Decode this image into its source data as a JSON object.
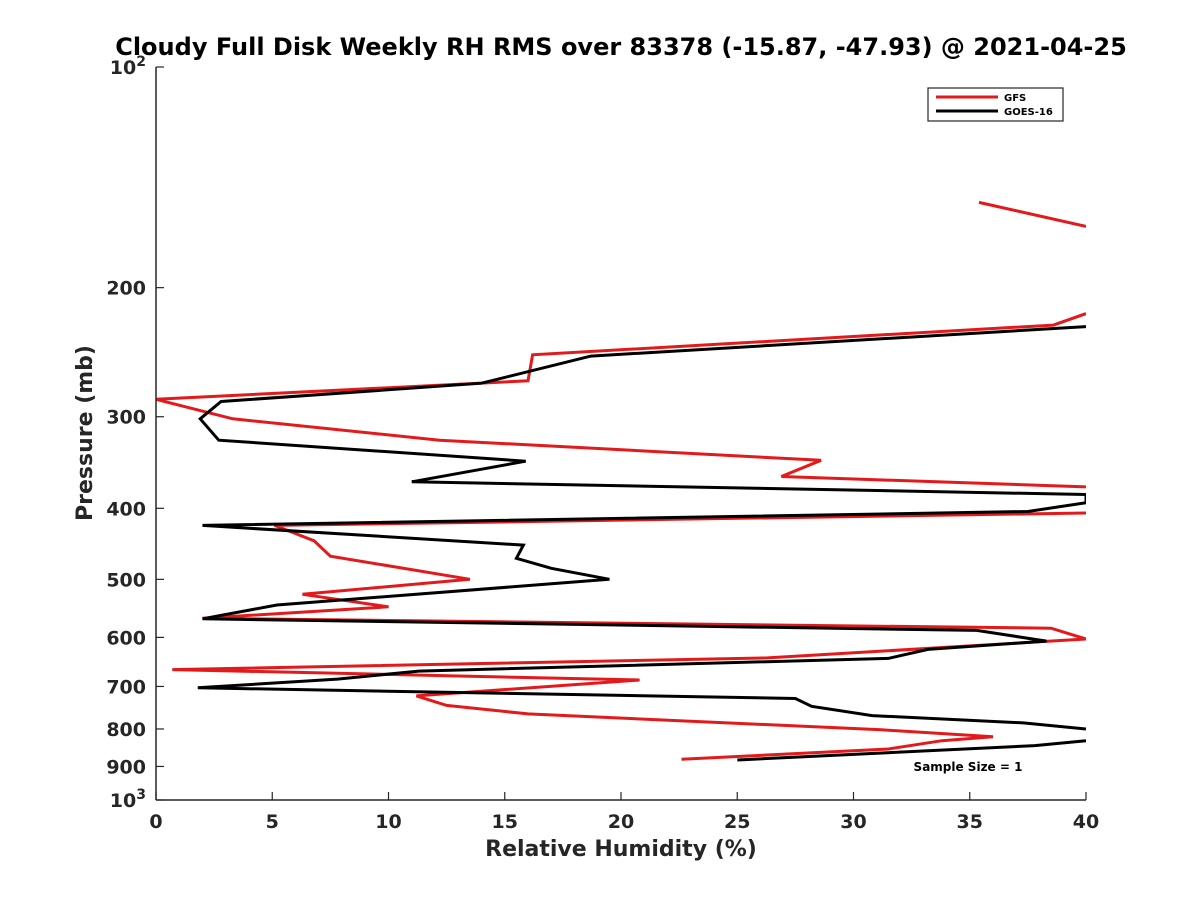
{
  "chart_data": {
    "type": "line",
    "title": "Cloudy Full Disk Weekly RH RMS over 83378 (-15.87, -47.93) @ 2021-04-25",
    "xlabel": "Relative Humidity (%)",
    "ylabel": "Pressure (mb)",
    "xlim": [
      0,
      40
    ],
    "ylim": [
      100,
      1000
    ],
    "y_scale": "log",
    "y_reversed": true,
    "grid": false,
    "legend_position": "top-right",
    "x_ticks": [
      0,
      5,
      10,
      15,
      20,
      25,
      30,
      35,
      40
    ],
    "y_ticks": [
      {
        "value": 100,
        "base": "10",
        "exp": "2"
      },
      {
        "value": 200,
        "label": "200"
      },
      {
        "value": 300,
        "label": "300"
      },
      {
        "value": 400,
        "label": "400"
      },
      {
        "value": 500,
        "label": "500"
      },
      {
        "value": 600,
        "label": "600"
      },
      {
        "value": 700,
        "label": "700"
      },
      {
        "value": 800,
        "label": "800"
      },
      {
        "value": 900,
        "label": "900"
      },
      {
        "value": 1000,
        "base": "10",
        "exp": "3"
      }
    ],
    "annotation": "Sample Size = 1",
    "series": [
      {
        "name": "GFS",
        "color": "#e31a1c",
        "segments": [
          [
            [
              35.4,
              153
            ],
            [
              40,
              165
            ]
          ],
          [
            [
              40,
              217
            ],
            [
              38.6,
              225
            ],
            [
              16.2,
              247
            ],
            [
              16.0,
              268
            ],
            [
              0,
              284
            ],
            [
              3.3,
              302
            ],
            [
              12.2,
              323
            ],
            [
              28.6,
              344
            ],
            [
              26.9,
              362
            ],
            [
              40,
              374
            ]
          ],
          [
            [
              40,
              406
            ],
            [
              5.1,
              422
            ],
            [
              6.8,
              443
            ],
            [
              7.5,
              465
            ],
            [
              13.5,
              500
            ],
            [
              6.3,
              524
            ],
            [
              10.0,
              545
            ],
            [
              2.0,
              565
            ],
            [
              38.5,
              583
            ],
            [
              40,
              603
            ],
            [
              26.3,
              640
            ],
            [
              0.7,
              664
            ],
            [
              20.8,
              686
            ],
            [
              11.2,
              721
            ],
            [
              12.5,
              743
            ],
            [
              16.0,
              763
            ],
            [
              31.2,
              802
            ],
            [
              36.0,
              820
            ],
            [
              33.8,
              830
            ],
            [
              31.5,
              852
            ],
            [
              22.6,
              880
            ]
          ]
        ]
      },
      {
        "name": "GOES-16",
        "color": "#000000",
        "segments": [
          [
            [
              40,
              226
            ],
            [
              18.7,
              248
            ],
            [
              14.0,
              270
            ],
            [
              2.8,
              286
            ],
            [
              1.9,
              302
            ],
            [
              2.7,
              323
            ],
            [
              15.9,
              345
            ],
            [
              11.0,
              368
            ],
            [
              40,
              383
            ],
            [
              40,
              393
            ],
            [
              37.5,
              404
            ],
            [
              2.0,
              422
            ],
            [
              15.8,
              449
            ],
            [
              15.5,
              468
            ],
            [
              17.0,
              483
            ],
            [
              19.5,
              500
            ],
            [
              5.2,
              542
            ],
            [
              2.0,
              566
            ],
            [
              35.3,
              587
            ],
            [
              38.3,
              607
            ],
            [
              33.2,
              623
            ],
            [
              31.5,
              641
            ],
            [
              11.3,
              667
            ],
            [
              7.8,
              684
            ],
            [
              1.8,
              703
            ],
            [
              27.5,
              727
            ],
            [
              28.2,
              745
            ],
            [
              30.8,
              767
            ],
            [
              37.3,
              785
            ],
            [
              40,
              800
            ]
          ],
          [
            [
              40,
              830
            ],
            [
              37.8,
              843
            ],
            [
              25.0,
              882
            ]
          ]
        ]
      }
    ]
  }
}
